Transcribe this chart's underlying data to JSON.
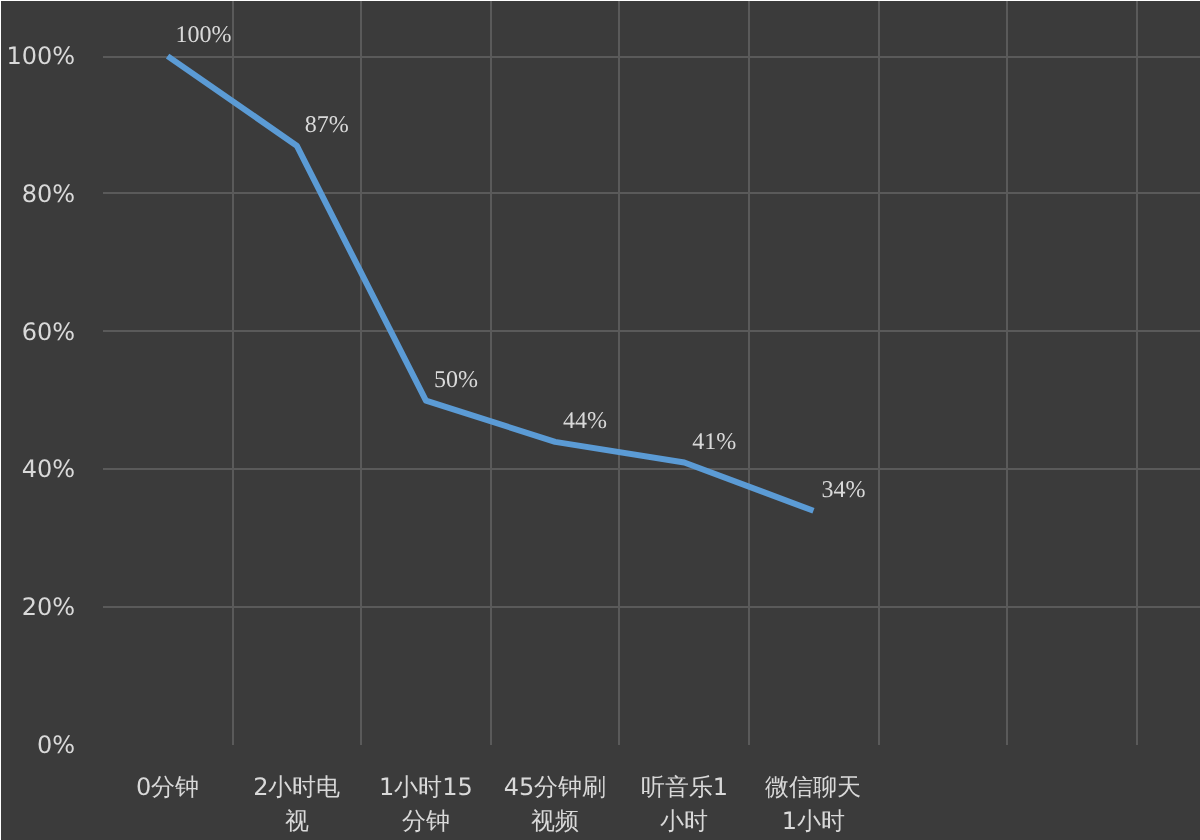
{
  "chart_data": {
    "type": "line",
    "categories": [
      "0分钟",
      "2小时电视",
      "1小时15分钟",
      "45分钟刷视频",
      "听音乐1小时",
      "微信聊天1小时",
      null,
      null
    ],
    "series": [
      {
        "color": "#5b9bd5",
        "values": [
          100,
          87,
          50,
          44,
          41,
          34,
          null,
          null
        ],
        "value_labels": [
          "100%",
          "87%",
          "50%",
          "44%",
          "41%",
          "34%",
          null,
          null
        ]
      }
    ],
    "ylim": [
      0,
      108
    ],
    "yticks": [
      {
        "value": 0,
        "label": "0%"
      },
      {
        "value": 20,
        "label": "20%"
      },
      {
        "value": 40,
        "label": "40%"
      },
      {
        "value": 60,
        "label": "60%"
      },
      {
        "value": 80,
        "label": "80%"
      },
      {
        "value": 100,
        "label": "100%"
      }
    ],
    "grid": true,
    "marker": "none",
    "line_style": "solid"
  }
}
